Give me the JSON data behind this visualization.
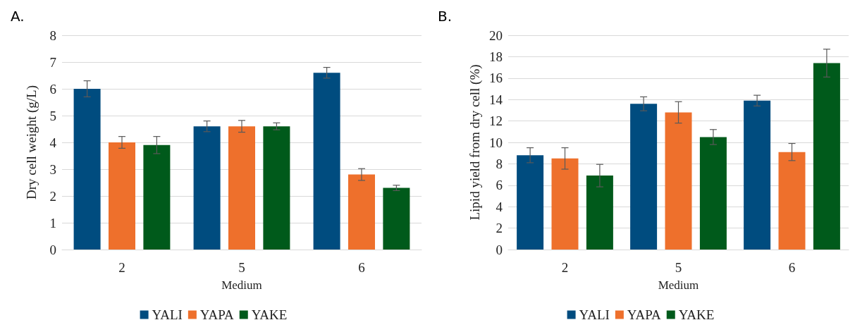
{
  "chart_data": [
    {
      "type": "bar",
      "title": "A.",
      "xlabel": "Medium",
      "ylabel": "Dry cell weight (g/L)",
      "categories": [
        "2",
        "5",
        "6"
      ],
      "ylim": [
        0,
        8
      ],
      "yticks": [
        0,
        1,
        2,
        3,
        4,
        5,
        6,
        7,
        8
      ],
      "grid": "y",
      "legend": "bottom",
      "series": [
        {
          "name": "YALI",
          "color": "#004c7f",
          "values": [
            6.0,
            4.6,
            6.6
          ],
          "errors": [
            0.3,
            0.2,
            0.2
          ]
        },
        {
          "name": "YAPA",
          "color": "#ee702c",
          "values": [
            4.0,
            4.6,
            2.8
          ],
          "errors": [
            0.22,
            0.22,
            0.22
          ]
        },
        {
          "name": "YAKE",
          "color": "#005a1b",
          "values": [
            3.9,
            4.6,
            2.3
          ],
          "errors": [
            0.32,
            0.13,
            0.1
          ]
        }
      ]
    },
    {
      "type": "bar",
      "title": "B.",
      "xlabel": "Medium",
      "ylabel": "Lipid yield from dry cell (%)",
      "categories": [
        "2",
        "5",
        "6"
      ],
      "ylim": [
        0,
        20
      ],
      "yticks": [
        0,
        2,
        4,
        6,
        8,
        10,
        12,
        14,
        16,
        18,
        20
      ],
      "grid": "y",
      "legend": "bottom",
      "series": [
        {
          "name": "YALI",
          "color": "#004c7f",
          "values": [
            8.8,
            13.6,
            13.9
          ],
          "errors": [
            0.7,
            0.65,
            0.5
          ]
        },
        {
          "name": "YAPA",
          "color": "#ee702c",
          "values": [
            8.5,
            12.8,
            9.1
          ],
          "errors": [
            1.0,
            1.0,
            0.8
          ]
        },
        {
          "name": "YAKE",
          "color": "#005a1b",
          "values": [
            6.9,
            10.5,
            17.4
          ],
          "errors": [
            1.05,
            0.7,
            1.3
          ]
        }
      ]
    }
  ]
}
